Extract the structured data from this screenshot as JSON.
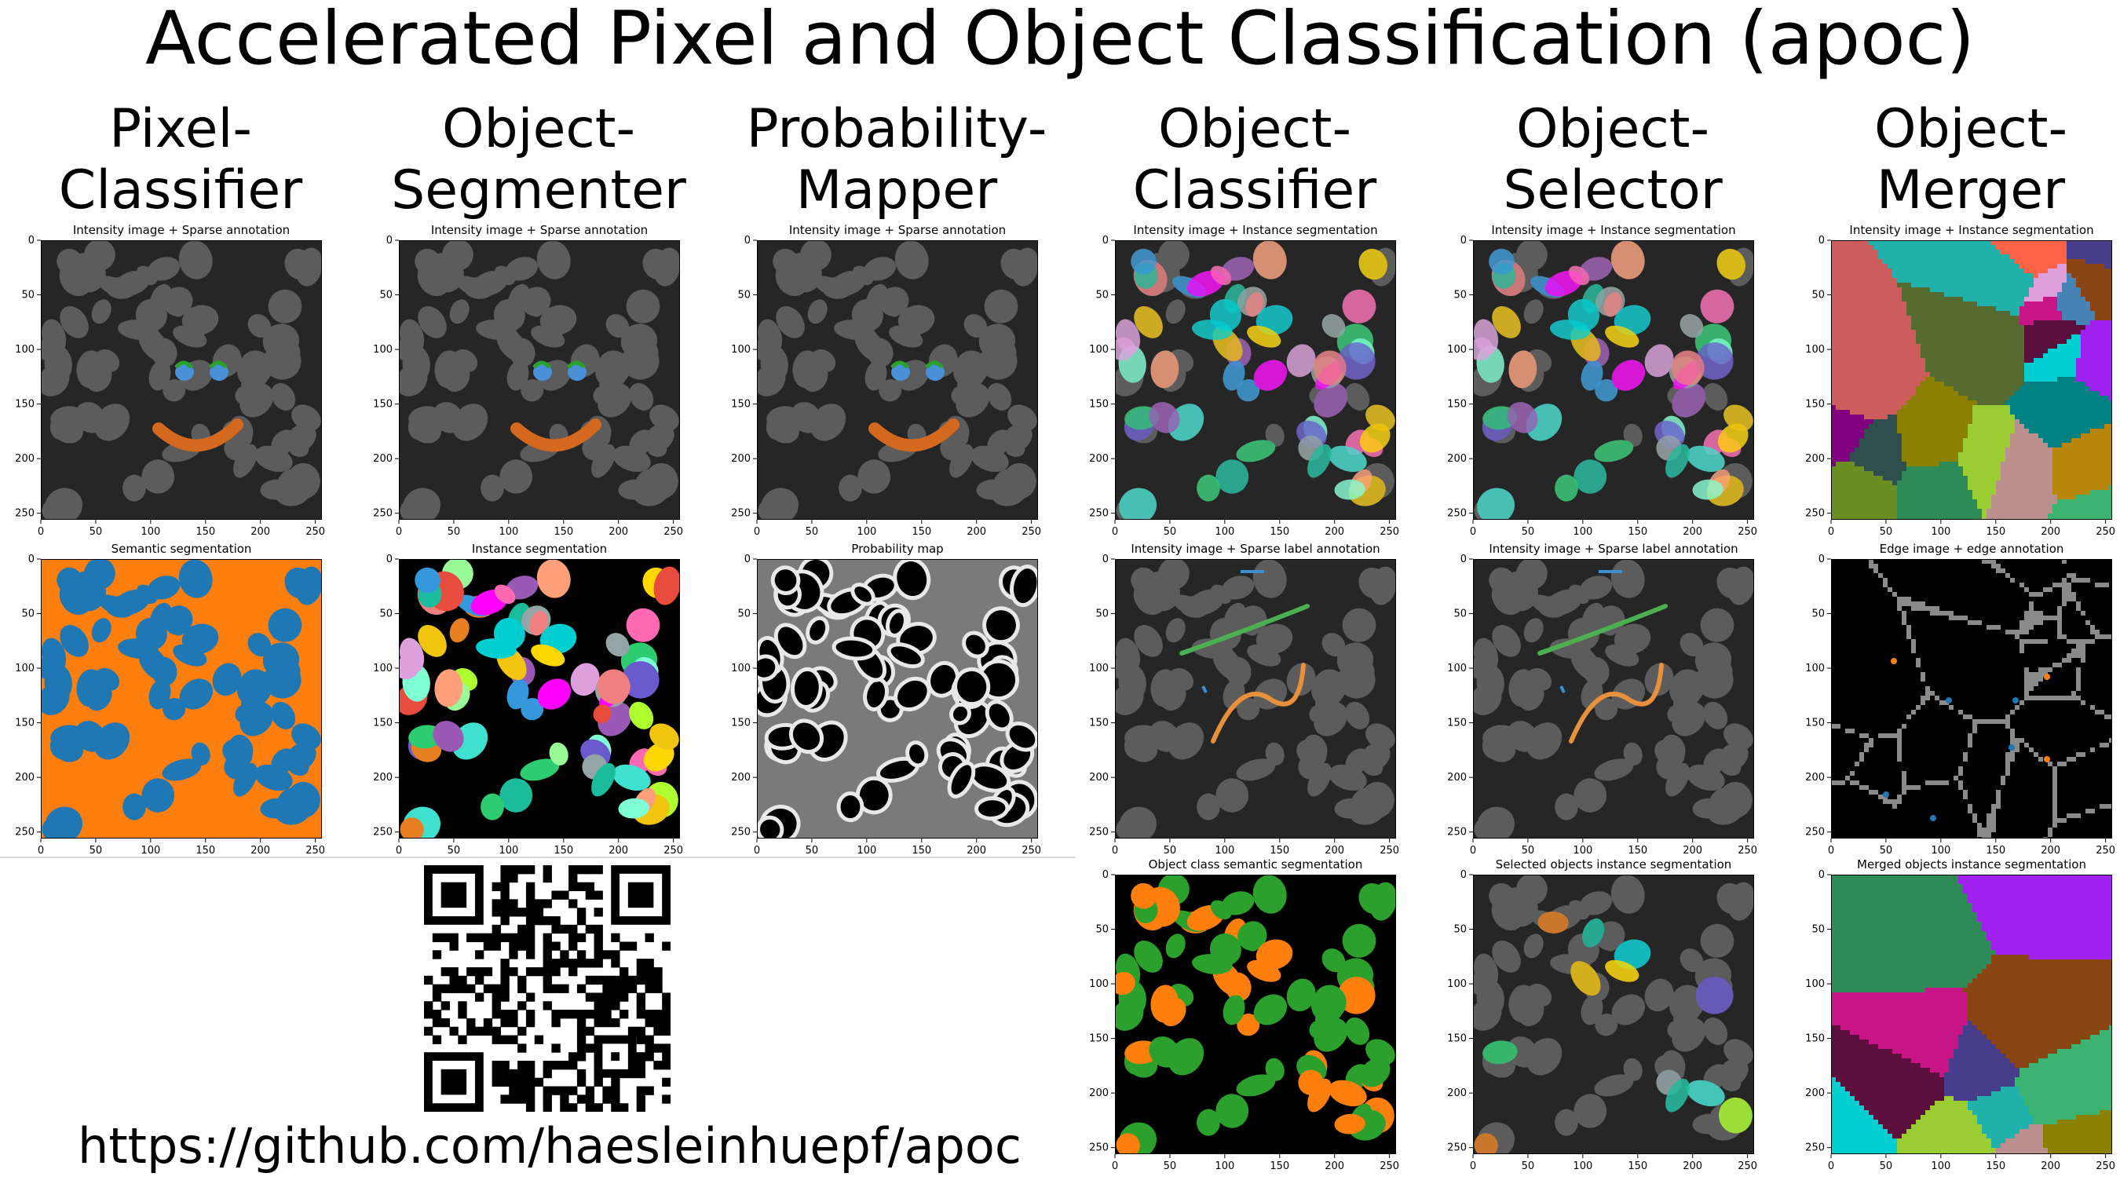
{
  "title": "Accelerated Pixel and Object Classification (apoc)",
  "columns": [
    {
      "id": "pixel-classifier",
      "line1": "Pixel-",
      "line2": "Classifier"
    },
    {
      "id": "object-segmenter",
      "line1": "Object-",
      "line2": "Segmenter"
    },
    {
      "id": "probability-mapper",
      "line1": "Probability-",
      "line2": "Mapper"
    },
    {
      "id": "object-classifier",
      "line1": "Object-",
      "line2": "Classifier"
    },
    {
      "id": "object-selector",
      "line1": "Object-",
      "line2": "Selector"
    },
    {
      "id": "object-merger",
      "line1": "Object-",
      "line2": "Merger"
    }
  ],
  "ticks": [
    "0",
    "50",
    "100",
    "150",
    "200",
    "250"
  ],
  "panels": [
    {
      "id": "pc-annot",
      "title": "Intensity image + Sparse annotation",
      "type": "annot-smile"
    },
    {
      "id": "os-annot",
      "title": "Intensity image + Sparse annotation",
      "type": "annot-smile"
    },
    {
      "id": "pm-annot",
      "title": "Intensity image + Sparse annotation",
      "type": "annot-smile"
    },
    {
      "id": "oc-input",
      "title": "Intensity image + Instance segmentation",
      "type": "instance-overlay"
    },
    {
      "id": "osel-input",
      "title": "Intensity image + Instance segmentation",
      "type": "instance-overlay"
    },
    {
      "id": "om-input",
      "title": "Intensity image + Instance segmentation",
      "type": "regions"
    },
    {
      "id": "pc-result",
      "title": "Semantic segmentation",
      "type": "semantic"
    },
    {
      "id": "os-result",
      "title": "Instance segmentation",
      "type": "instance-black"
    },
    {
      "id": "pm-result",
      "title": "Probability map",
      "type": "probability"
    },
    {
      "id": "oc-annot",
      "title": "Intensity image + Sparse label annotation",
      "type": "annot-lines"
    },
    {
      "id": "osel-annot",
      "title": "Intensity image + Sparse label annotation",
      "type": "annot-lines"
    },
    {
      "id": "om-annot",
      "title": "Edge image + edge annotation",
      "type": "edges"
    },
    {
      "id": "oc-result",
      "title": "Object class semantic segmentation",
      "type": "class-semantic"
    },
    {
      "id": "osel-result",
      "title": "Selected objects instance segmentation",
      "type": "selected"
    },
    {
      "id": "om-result",
      "title": "Merged objects instance segmentation",
      "type": "merged"
    }
  ],
  "colors": {
    "orange": "#ff7f0e",
    "blue": "#1f77b4",
    "green": "#2ca02c",
    "annotation_orange": "#d2691e",
    "annotation_blue": "#4a90d9"
  },
  "url": "https://github.com/haesleinhuepf/apoc"
}
